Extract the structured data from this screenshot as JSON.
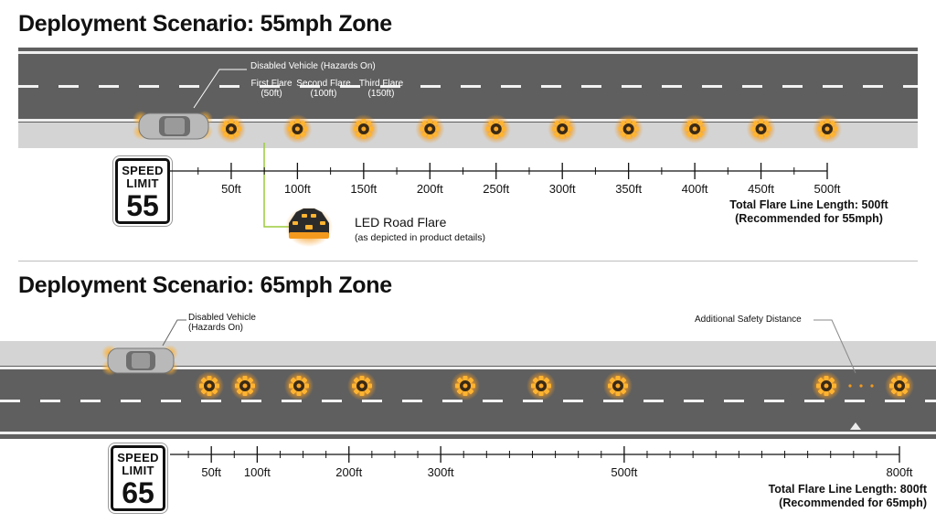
{
  "scenario1": {
    "title": "Deployment Scenario: 55mph Zone",
    "sign": {
      "line1": "SPEED",
      "line2": "LIMIT",
      "number": "55"
    },
    "vehicle_label": "Disabled Vehicle (Hazards On)",
    "flare_labels": [
      {
        "line1": "First Flare",
        "line2": "(50ft)"
      },
      {
        "line1": "Second Flare",
        "line2": "(100ft)"
      },
      {
        "line1": "Third Flare",
        "line2": "(150ft)"
      }
    ],
    "flare_positions_ft": [
      50,
      100,
      150,
      200,
      250,
      300,
      350,
      400,
      450,
      500
    ],
    "axis_ticks_ft": [
      50,
      100,
      150,
      200,
      250,
      300,
      350,
      400,
      450,
      500
    ],
    "tick_labels": [
      "50ft",
      "100ft",
      "150ft",
      "200ft",
      "250ft",
      "300ft",
      "350ft",
      "400ft",
      "450ft",
      "500ft"
    ],
    "total_line1": "Total Flare Line Length: 500ft",
    "total_line2": "(Recommended for 55mph)",
    "legend": {
      "title": "LED Road Flare",
      "subtitle": "(as depicted in product details)"
    }
  },
  "scenario2": {
    "title": "Deployment Scenario: 65mph Zone",
    "sign": {
      "line1": "SPEED",
      "line2": "LIMIT",
      "number": "65"
    },
    "vehicle_label_line1": "Disabled Vehicle",
    "vehicle_label_line2": "(Hazards On)",
    "safety_label": "Additional Safety Distance",
    "flare_positions_ft": [
      50,
      100,
      200,
      300,
      500,
      800
    ],
    "axis_ticks_ft": [
      50,
      100,
      200,
      300,
      500,
      800
    ],
    "tick_labels": [
      "50ft",
      "100ft",
      "200ft",
      "300ft",
      "500ft",
      "800ft"
    ],
    "total_line1": "Total Flare Line Length: 800ft",
    "total_line2": "(Recommended for 65mph)"
  },
  "colors": {
    "road": "#5f5f5f",
    "shoulder": "#d4d4d4",
    "flare_glow": "#f39a1e",
    "flare_core": "#3a2a14",
    "vehicle_glow": "#f2a020",
    "leader_green": "#9ccc3c"
  }
}
